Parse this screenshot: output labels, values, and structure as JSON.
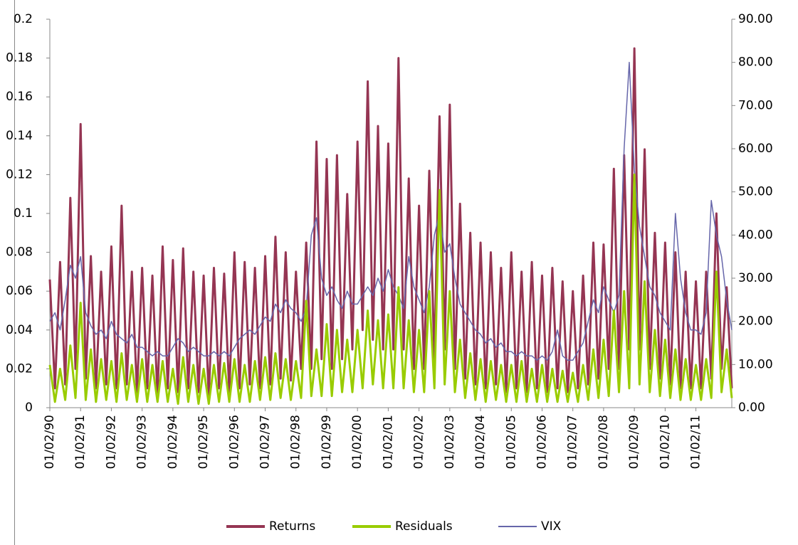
{
  "chart_data": {
    "type": "line",
    "categories": [
      "01/02/90",
      null,
      null,
      null,
      null,
      null,
      "01/02/91",
      null,
      null,
      null,
      null,
      null,
      "01/02/92",
      null,
      null,
      null,
      null,
      null,
      "01/02/93",
      null,
      null,
      null,
      null,
      null,
      "01/02/94",
      null,
      null,
      null,
      null,
      null,
      "01/02/95",
      null,
      null,
      null,
      null,
      null,
      "01/02/96",
      null,
      null,
      null,
      null,
      null,
      "01/02/97",
      null,
      null,
      null,
      null,
      null,
      "01/02/98",
      null,
      null,
      null,
      null,
      null,
      "01/02/99",
      null,
      null,
      null,
      null,
      null,
      "01/02/00",
      null,
      null,
      null,
      null,
      null,
      "01/02/01",
      null,
      null,
      null,
      null,
      null,
      "01/02/02",
      null,
      null,
      null,
      null,
      null,
      "01/02/03",
      null,
      null,
      null,
      null,
      null,
      "01/02/04",
      null,
      null,
      null,
      null,
      null,
      "01/02/05",
      null,
      null,
      null,
      null,
      null,
      "01/02/06",
      null,
      null,
      null,
      null,
      null,
      "01/02/07",
      null,
      null,
      null,
      null,
      null,
      "01/02/08",
      null,
      null,
      null,
      null,
      null,
      "01/02/09",
      null,
      null,
      null,
      null,
      null,
      "01/02/10",
      null,
      null,
      null,
      null,
      null,
      "01/02/11",
      null,
      null,
      null,
      null,
      null,
      null,
      null
    ],
    "series": [
      {
        "name": "Returns",
        "color": "#953553",
        "values": [
          0.066,
          0.01,
          0.075,
          0.012,
          0.108,
          0.02,
          0.146,
          0.015,
          0.078,
          0.01,
          0.07,
          0.012,
          0.083,
          0.01,
          0.104,
          0.012,
          0.07,
          0.008,
          0.072,
          0.01,
          0.068,
          0.006,
          0.083,
          0.01,
          0.076,
          0.008,
          0.082,
          0.01,
          0.07,
          0.008,
          0.068,
          0.006,
          0.072,
          0.01,
          0.069,
          0.008,
          0.08,
          0.01,
          0.075,
          0.012,
          0.072,
          0.01,
          0.078,
          0.012,
          0.088,
          0.015,
          0.08,
          0.014,
          0.07,
          0.02,
          0.085,
          0.02,
          0.137,
          0.025,
          0.128,
          0.02,
          0.13,
          0.025,
          0.11,
          0.03,
          0.137,
          0.04,
          0.168,
          0.035,
          0.145,
          0.03,
          0.136,
          0.03,
          0.18,
          0.03,
          0.118,
          0.02,
          0.104,
          0.02,
          0.122,
          0.025,
          0.15,
          0.03,
          0.156,
          0.02,
          0.105,
          0.015,
          0.09,
          0.012,
          0.085,
          0.01,
          0.08,
          0.012,
          0.072,
          0.008,
          0.08,
          0.01,
          0.07,
          0.008,
          0.075,
          0.01,
          0.068,
          0.008,
          0.072,
          0.01,
          0.065,
          0.008,
          0.06,
          0.01,
          0.068,
          0.012,
          0.085,
          0.015,
          0.084,
          0.02,
          0.123,
          0.02,
          0.13,
          0.03,
          0.185,
          0.03,
          0.133,
          0.02,
          0.09,
          0.015,
          0.085,
          0.012,
          0.08,
          0.01,
          0.07,
          0.01,
          0.065,
          0.01,
          0.07,
          0.015,
          0.1,
          0.02,
          0.062,
          0.01
        ]
      },
      {
        "name": "Residuals",
        "color": "#99cc00",
        "values": [
          0.022,
          0.003,
          0.02,
          0.004,
          0.032,
          0.005,
          0.054,
          0.004,
          0.03,
          0.003,
          0.025,
          0.004,
          0.024,
          0.003,
          0.028,
          0.004,
          0.022,
          0.003,
          0.025,
          0.003,
          0.022,
          0.003,
          0.024,
          0.003,
          0.02,
          0.002,
          0.026,
          0.003,
          0.022,
          0.002,
          0.02,
          0.002,
          0.022,
          0.003,
          0.023,
          0.003,
          0.025,
          0.003,
          0.022,
          0.003,
          0.024,
          0.004,
          0.026,
          0.004,
          0.028,
          0.005,
          0.025,
          0.004,
          0.024,
          0.005,
          0.055,
          0.006,
          0.03,
          0.006,
          0.043,
          0.006,
          0.04,
          0.008,
          0.035,
          0.008,
          0.04,
          0.01,
          0.05,
          0.012,
          0.045,
          0.01,
          0.048,
          0.01,
          0.062,
          0.01,
          0.045,
          0.008,
          0.04,
          0.008,
          0.06,
          0.01,
          0.112,
          0.012,
          0.06,
          0.008,
          0.035,
          0.005,
          0.028,
          0.004,
          0.025,
          0.003,
          0.024,
          0.004,
          0.022,
          0.003,
          0.022,
          0.003,
          0.024,
          0.003,
          0.02,
          0.003,
          0.022,
          0.003,
          0.02,
          0.003,
          0.019,
          0.003,
          0.018,
          0.003,
          0.022,
          0.004,
          0.03,
          0.005,
          0.035,
          0.006,
          0.05,
          0.008,
          0.06,
          0.01,
          0.12,
          0.012,
          0.065,
          0.008,
          0.04,
          0.006,
          0.035,
          0.005,
          0.03,
          0.004,
          0.025,
          0.004,
          0.022,
          0.004,
          0.025,
          0.005,
          0.07,
          0.008,
          0.03,
          0.005
        ]
      },
      {
        "name": "VIX",
        "color": "#6666aa",
        "axis": "y2",
        "values": [
          20,
          22,
          18,
          25,
          33,
          30,
          35,
          22,
          19,
          17,
          18,
          16,
          20,
          17,
          16,
          15,
          17,
          14,
          14,
          13,
          12,
          13,
          12,
          12,
          14,
          16,
          15,
          13,
          14,
          13,
          12,
          12,
          13,
          12,
          13,
          12,
          14,
          16,
          17,
          18,
          17,
          19,
          21,
          20,
          24,
          22,
          25,
          23,
          22,
          20,
          23,
          40,
          44,
          30,
          26,
          28,
          25,
          23,
          27,
          24,
          24,
          26,
          28,
          26,
          30,
          27,
          32,
          28,
          26,
          23,
          35,
          28,
          25,
          22,
          28,
          40,
          45,
          36,
          38,
          30,
          24,
          22,
          20,
          18,
          17,
          15,
          16,
          14,
          15,
          13,
          13,
          12,
          13,
          12,
          12,
          11,
          12,
          11,
          13,
          18,
          12,
          11,
          11,
          13,
          15,
          20,
          25,
          22,
          28,
          25,
          22,
          26,
          60,
          80,
          55,
          42,
          35,
          28,
          26,
          22,
          20,
          18,
          45,
          30,
          22,
          18,
          18,
          17,
          22,
          48,
          40,
          35,
          25,
          18
        ]
      }
    ],
    "ylim": [
      0,
      0.2
    ],
    "yticks": [
      0,
      0.02,
      0.04,
      0.06,
      0.08,
      0.1,
      0.12,
      0.14,
      0.16,
      0.18,
      0.2
    ],
    "y2lim": [
      0,
      90
    ],
    "y2ticks": [
      {
        "value": 0,
        "label": "0.00"
      },
      {
        "value": 10,
        "label": "10.00"
      },
      {
        "value": 20,
        "label": "20.00"
      },
      {
        "value": 30,
        "label": "30.00"
      },
      {
        "value": 40,
        "label": "40.00"
      },
      {
        "value": 50,
        "label": "50.00"
      },
      {
        "value": 60,
        "label": "60.00"
      },
      {
        "value": 70,
        "label": "70.00"
      },
      {
        "value": 80,
        "label": "80.00"
      },
      {
        "value": 90,
        "label": "90.00"
      }
    ],
    "grid": false,
    "legend": "bottom"
  }
}
